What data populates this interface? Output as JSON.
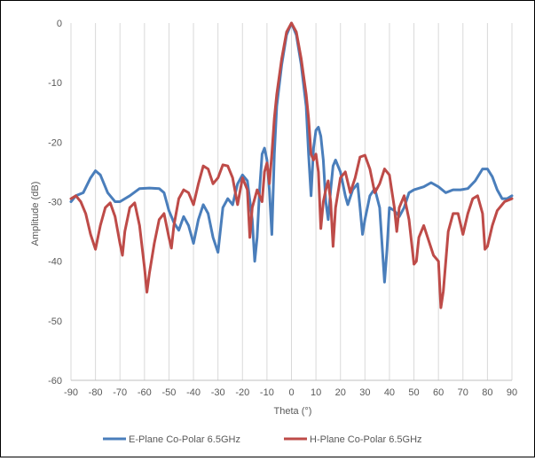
{
  "chart_data": {
    "type": "line",
    "xlabel": "Theta (°)",
    "ylabel": "Amplitude (dB)",
    "xlim": [
      -90,
      90
    ],
    "ylim": [
      -60,
      0
    ],
    "x_ticks": [
      -90,
      -80,
      -70,
      -60,
      -50,
      -40,
      -30,
      -20,
      -10,
      0,
      10,
      20,
      30,
      40,
      50,
      60,
      70,
      80,
      90
    ],
    "y_ticks": [
      0,
      -10,
      -20,
      -30,
      -40,
      -50,
      -60
    ],
    "grid": "vertical",
    "legend_position": "bottom",
    "series": [
      {
        "name": "E-Plane Co-Polar 6.5GHz",
        "color": "#4a7ebb",
        "points": [
          [
            -90,
            -30
          ],
          [
            -88,
            -29
          ],
          [
            -85,
            -28.5
          ],
          [
            -82,
            -26
          ],
          [
            -80,
            -24.8
          ],
          [
            -78,
            -25.5
          ],
          [
            -75,
            -28.5
          ],
          [
            -72,
            -30
          ],
          [
            -70,
            -30
          ],
          [
            -66,
            -29
          ],
          [
            -62,
            -27.8
          ],
          [
            -58,
            -27.7
          ],
          [
            -54,
            -27.8
          ],
          [
            -52,
            -28.5
          ],
          [
            -50,
            -31.5
          ],
          [
            -48,
            -33.5
          ],
          [
            -46,
            -34.8
          ],
          [
            -44,
            -32.5
          ],
          [
            -42,
            -34
          ],
          [
            -40,
            -37
          ],
          [
            -38,
            -33
          ],
          [
            -36,
            -30.5
          ],
          [
            -34,
            -32
          ],
          [
            -32,
            -36
          ],
          [
            -30,
            -38.5
          ],
          [
            -28,
            -31
          ],
          [
            -26,
            -29.5
          ],
          [
            -24,
            -30.5
          ],
          [
            -22,
            -27
          ],
          [
            -20,
            -25.5
          ],
          [
            -18,
            -26.5
          ],
          [
            -16,
            -33
          ],
          [
            -15,
            -40
          ],
          [
            -14,
            -36
          ],
          [
            -13,
            -28
          ],
          [
            -12,
            -22
          ],
          [
            -11,
            -21
          ],
          [
            -10,
            -23
          ],
          [
            -9,
            -28
          ],
          [
            -8,
            -35.5
          ],
          [
            -7,
            -22
          ],
          [
            -6,
            -14
          ],
          [
            -4,
            -7
          ],
          [
            -2,
            -2
          ],
          [
            0,
            0
          ],
          [
            2,
            -2
          ],
          [
            4,
            -7
          ],
          [
            6,
            -14
          ],
          [
            7,
            -22
          ],
          [
            8,
            -29
          ],
          [
            9,
            -21
          ],
          [
            10,
            -18
          ],
          [
            11,
            -17.5
          ],
          [
            12,
            -19
          ],
          [
            13,
            -23
          ],
          [
            14,
            -30
          ],
          [
            15,
            -33
          ],
          [
            16,
            -28
          ],
          [
            17,
            -24
          ],
          [
            18,
            -23
          ],
          [
            20,
            -25
          ],
          [
            22,
            -29
          ],
          [
            23,
            -30.5
          ],
          [
            25,
            -28
          ],
          [
            27,
            -27
          ],
          [
            28,
            -31
          ],
          [
            29,
            -35.5
          ],
          [
            30,
            -33
          ],
          [
            32,
            -29
          ],
          [
            34,
            -27.8
          ],
          [
            36,
            -31
          ],
          [
            38,
            -43.5
          ],
          [
            39,
            -38
          ],
          [
            40,
            -31
          ],
          [
            42,
            -31.5
          ],
          [
            44,
            -32.5
          ],
          [
            46,
            -31
          ],
          [
            48,
            -28.5
          ],
          [
            50,
            -28
          ],
          [
            54,
            -27.5
          ],
          [
            57,
            -26.8
          ],
          [
            60,
            -27.5
          ],
          [
            63,
            -28.5
          ],
          [
            66,
            -28
          ],
          [
            69,
            -28
          ],
          [
            72,
            -27.8
          ],
          [
            75,
            -26.5
          ],
          [
            78,
            -24.5
          ],
          [
            80,
            -24.5
          ],
          [
            82,
            -25.8
          ],
          [
            84,
            -28
          ],
          [
            86,
            -29.5
          ],
          [
            88,
            -29.5
          ],
          [
            90,
            -29
          ]
        ]
      },
      {
        "name": "H-Plane Co-Polar 6.5GHz",
        "color": "#be4b48",
        "points": [
          [
            -90,
            -29.5
          ],
          [
            -88,
            -29
          ],
          [
            -86,
            -30
          ],
          [
            -84,
            -32
          ],
          [
            -82,
            -35.5
          ],
          [
            -80,
            -38
          ],
          [
            -78,
            -34
          ],
          [
            -76,
            -31
          ],
          [
            -74,
            -30.2
          ],
          [
            -72,
            -32.5
          ],
          [
            -70,
            -37
          ],
          [
            -69,
            -39
          ],
          [
            -68,
            -35
          ],
          [
            -66,
            -31
          ],
          [
            -64,
            -30.2
          ],
          [
            -62,
            -34
          ],
          [
            -60,
            -41
          ],
          [
            -59,
            -45.2
          ],
          [
            -58,
            -42
          ],
          [
            -56,
            -37
          ],
          [
            -54,
            -33
          ],
          [
            -52,
            -32
          ],
          [
            -50,
            -36
          ],
          [
            -49,
            -37.8
          ],
          [
            -48,
            -34
          ],
          [
            -46,
            -29.5
          ],
          [
            -44,
            -28
          ],
          [
            -42,
            -28.5
          ],
          [
            -40,
            -30.5
          ],
          [
            -38,
            -27
          ],
          [
            -36,
            -24
          ],
          [
            -34,
            -24.5
          ],
          [
            -32,
            -27
          ],
          [
            -30,
            -26
          ],
          [
            -28,
            -23.8
          ],
          [
            -26,
            -24
          ],
          [
            -24,
            -26
          ],
          [
            -22,
            -30.5
          ],
          [
            -20,
            -26
          ],
          [
            -18,
            -28
          ],
          [
            -17,
            -36
          ],
          [
            -16,
            -31
          ],
          [
            -14,
            -28
          ],
          [
            -12,
            -30
          ],
          [
            -11,
            -25
          ],
          [
            -10,
            -23.5
          ],
          [
            -9,
            -27
          ],
          [
            -8,
            -22
          ],
          [
            -7,
            -16
          ],
          [
            -6,
            -12
          ],
          [
            -4,
            -6
          ],
          [
            -2,
            -1.5
          ],
          [
            0,
            0
          ],
          [
            2,
            -1.5
          ],
          [
            4,
            -6
          ],
          [
            6,
            -12
          ],
          [
            7,
            -16
          ],
          [
            8,
            -22
          ],
          [
            9,
            -23
          ],
          [
            10,
            -22
          ],
          [
            11,
            -25
          ],
          [
            12,
            -34.5
          ],
          [
            13,
            -30
          ],
          [
            14,
            -28
          ],
          [
            15,
            -26.5
          ],
          [
            16,
            -30
          ],
          [
            17,
            -37.5
          ],
          [
            18,
            -31
          ],
          [
            20,
            -26
          ],
          [
            22,
            -25
          ],
          [
            24,
            -28.5
          ],
          [
            26,
            -26
          ],
          [
            28,
            -22.5
          ],
          [
            30,
            -22.2
          ],
          [
            32,
            -24.5
          ],
          [
            34,
            -28.5
          ],
          [
            36,
            -27
          ],
          [
            38,
            -24.5
          ],
          [
            40,
            -25.5
          ],
          [
            42,
            -31
          ],
          [
            43,
            -35
          ],
          [
            44,
            -31
          ],
          [
            46,
            -29
          ],
          [
            48,
            -33
          ],
          [
            50,
            -40.5
          ],
          [
            51,
            -40
          ],
          [
            52,
            -36
          ],
          [
            54,
            -34
          ],
          [
            56,
            -36.5
          ],
          [
            58,
            -39
          ],
          [
            60,
            -40
          ],
          [
            61,
            -47.8
          ],
          [
            62,
            -45
          ],
          [
            64,
            -35
          ],
          [
            66,
            -32
          ],
          [
            68,
            -32
          ],
          [
            70,
            -35.5
          ],
          [
            72,
            -32
          ],
          [
            74,
            -29.5
          ],
          [
            76,
            -29
          ],
          [
            78,
            -32
          ],
          [
            79,
            -38
          ],
          [
            80,
            -37.5
          ],
          [
            82,
            -34
          ],
          [
            84,
            -31.5
          ],
          [
            87,
            -30
          ],
          [
            90,
            -29.5
          ]
        ]
      }
    ]
  }
}
